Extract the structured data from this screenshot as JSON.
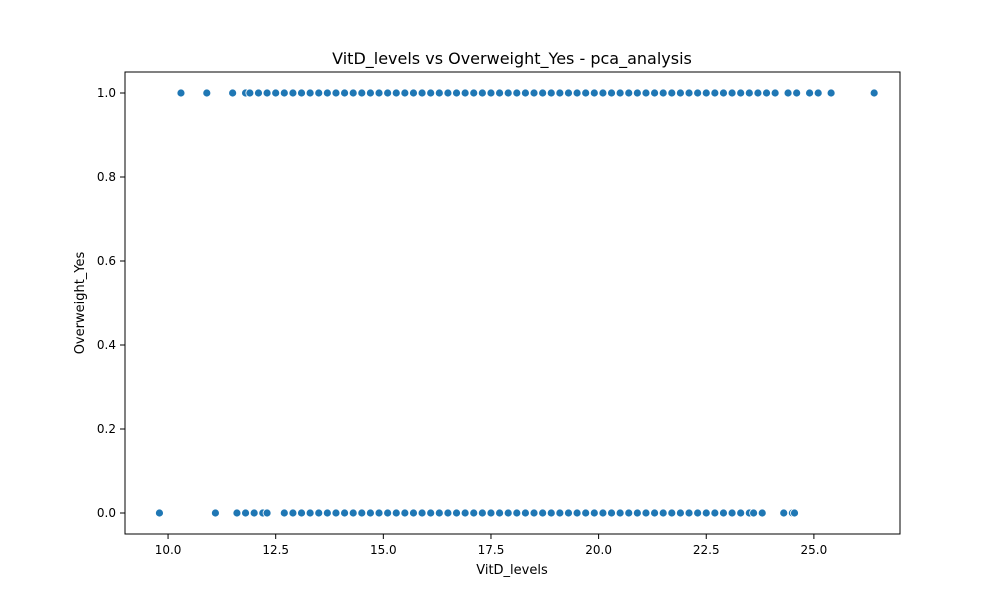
{
  "chart_data": {
    "type": "scatter",
    "title": "VitD_levels vs Overweight_Yes - pca_analysis",
    "xlabel": "VitD_levels",
    "ylabel": "Overweight_Yes",
    "xlim": [
      9.0,
      27.0
    ],
    "ylim": [
      -0.05,
      1.05
    ],
    "x_ticks": [
      10.0,
      12.5,
      15.0,
      17.5,
      20.0,
      22.5,
      25.0
    ],
    "x_tick_labels": [
      "10.0",
      "12.5",
      "15.0",
      "17.5",
      "20.0",
      "22.5",
      "25.0"
    ],
    "y_ticks": [
      0.0,
      0.2,
      0.4,
      0.6,
      0.8,
      1.0
    ],
    "y_tick_labels": [
      "0.0",
      "0.2",
      "0.4",
      "0.6",
      "0.8",
      "1.0"
    ],
    "grid": false,
    "marker_color": "#1f77b4",
    "series": [
      {
        "points": [
          {
            "x": 10.3,
            "y": 1
          },
          {
            "x": 10.9,
            "y": 1
          },
          {
            "x": 11.5,
            "y": 1
          },
          {
            "x": 11.8,
            "y": 1
          },
          {
            "x": 11.9,
            "y": 1
          },
          {
            "x": 12.1,
            "y": 1
          },
          {
            "x": 12.3,
            "y": 1
          },
          {
            "x": 12.5,
            "y": 1
          },
          {
            "x": 12.7,
            "y": 1
          },
          {
            "x": 12.9,
            "y": 1
          },
          {
            "x": 13.1,
            "y": 1
          },
          {
            "x": 13.3,
            "y": 1
          },
          {
            "x": 13.5,
            "y": 1
          },
          {
            "x": 13.7,
            "y": 1
          },
          {
            "x": 13.9,
            "y": 1
          },
          {
            "x": 14.1,
            "y": 1
          },
          {
            "x": 14.3,
            "y": 1
          },
          {
            "x": 14.5,
            "y": 1
          },
          {
            "x": 14.7,
            "y": 1
          },
          {
            "x": 14.9,
            "y": 1
          },
          {
            "x": 15.1,
            "y": 1
          },
          {
            "x": 15.3,
            "y": 1
          },
          {
            "x": 15.5,
            "y": 1
          },
          {
            "x": 15.7,
            "y": 1
          },
          {
            "x": 15.9,
            "y": 1
          },
          {
            "x": 16.1,
            "y": 1
          },
          {
            "x": 16.3,
            "y": 1
          },
          {
            "x": 16.5,
            "y": 1
          },
          {
            "x": 16.7,
            "y": 1
          },
          {
            "x": 16.9,
            "y": 1
          },
          {
            "x": 17.1,
            "y": 1
          },
          {
            "x": 17.3,
            "y": 1
          },
          {
            "x": 17.5,
            "y": 1
          },
          {
            "x": 17.7,
            "y": 1
          },
          {
            "x": 17.9,
            "y": 1
          },
          {
            "x": 18.1,
            "y": 1
          },
          {
            "x": 18.3,
            "y": 1
          },
          {
            "x": 18.5,
            "y": 1
          },
          {
            "x": 18.7,
            "y": 1
          },
          {
            "x": 18.9,
            "y": 1
          },
          {
            "x": 19.1,
            "y": 1
          },
          {
            "x": 19.3,
            "y": 1
          },
          {
            "x": 19.5,
            "y": 1
          },
          {
            "x": 19.7,
            "y": 1
          },
          {
            "x": 19.9,
            "y": 1
          },
          {
            "x": 20.1,
            "y": 1
          },
          {
            "x": 20.3,
            "y": 1
          },
          {
            "x": 20.5,
            "y": 1
          },
          {
            "x": 20.7,
            "y": 1
          },
          {
            "x": 20.9,
            "y": 1
          },
          {
            "x": 21.1,
            "y": 1
          },
          {
            "x": 21.3,
            "y": 1
          },
          {
            "x": 21.5,
            "y": 1
          },
          {
            "x": 21.7,
            "y": 1
          },
          {
            "x": 21.9,
            "y": 1
          },
          {
            "x": 22.1,
            "y": 1
          },
          {
            "x": 22.3,
            "y": 1
          },
          {
            "x": 22.5,
            "y": 1
          },
          {
            "x": 22.7,
            "y": 1
          },
          {
            "x": 22.9,
            "y": 1
          },
          {
            "x": 23.1,
            "y": 1
          },
          {
            "x": 23.3,
            "y": 1
          },
          {
            "x": 23.5,
            "y": 1
          },
          {
            "x": 23.7,
            "y": 1
          },
          {
            "x": 23.9,
            "y": 1
          },
          {
            "x": 24.1,
            "y": 1
          },
          {
            "x": 24.4,
            "y": 1
          },
          {
            "x": 24.6,
            "y": 1
          },
          {
            "x": 24.9,
            "y": 1
          },
          {
            "x": 25.1,
            "y": 1
          },
          {
            "x": 25.4,
            "y": 1
          },
          {
            "x": 26.4,
            "y": 1
          },
          {
            "x": 9.8,
            "y": 0
          },
          {
            "x": 11.1,
            "y": 0
          },
          {
            "x": 11.6,
            "y": 0
          },
          {
            "x": 11.8,
            "y": 0
          },
          {
            "x": 12.0,
            "y": 0
          },
          {
            "x": 12.2,
            "y": 0
          },
          {
            "x": 12.3,
            "y": 0
          },
          {
            "x": 12.7,
            "y": 0
          },
          {
            "x": 12.9,
            "y": 0
          },
          {
            "x": 13.1,
            "y": 0
          },
          {
            "x": 13.3,
            "y": 0
          },
          {
            "x": 13.5,
            "y": 0
          },
          {
            "x": 13.7,
            "y": 0
          },
          {
            "x": 13.9,
            "y": 0
          },
          {
            "x": 14.1,
            "y": 0
          },
          {
            "x": 14.3,
            "y": 0
          },
          {
            "x": 14.5,
            "y": 0
          },
          {
            "x": 14.7,
            "y": 0
          },
          {
            "x": 14.9,
            "y": 0
          },
          {
            "x": 15.1,
            "y": 0
          },
          {
            "x": 15.3,
            "y": 0
          },
          {
            "x": 15.5,
            "y": 0
          },
          {
            "x": 15.7,
            "y": 0
          },
          {
            "x": 15.9,
            "y": 0
          },
          {
            "x": 16.1,
            "y": 0
          },
          {
            "x": 16.3,
            "y": 0
          },
          {
            "x": 16.5,
            "y": 0
          },
          {
            "x": 16.7,
            "y": 0
          },
          {
            "x": 16.9,
            "y": 0
          },
          {
            "x": 17.1,
            "y": 0
          },
          {
            "x": 17.3,
            "y": 0
          },
          {
            "x": 17.5,
            "y": 0
          },
          {
            "x": 17.7,
            "y": 0
          },
          {
            "x": 17.9,
            "y": 0
          },
          {
            "x": 18.1,
            "y": 0
          },
          {
            "x": 18.3,
            "y": 0
          },
          {
            "x": 18.5,
            "y": 0
          },
          {
            "x": 18.7,
            "y": 0
          },
          {
            "x": 18.9,
            "y": 0
          },
          {
            "x": 19.1,
            "y": 0
          },
          {
            "x": 19.3,
            "y": 0
          },
          {
            "x": 19.5,
            "y": 0
          },
          {
            "x": 19.7,
            "y": 0
          },
          {
            "x": 19.9,
            "y": 0
          },
          {
            "x": 20.1,
            "y": 0
          },
          {
            "x": 20.3,
            "y": 0
          },
          {
            "x": 20.5,
            "y": 0
          },
          {
            "x": 20.7,
            "y": 0
          },
          {
            "x": 20.9,
            "y": 0
          },
          {
            "x": 21.1,
            "y": 0
          },
          {
            "x": 21.3,
            "y": 0
          },
          {
            "x": 21.5,
            "y": 0
          },
          {
            "x": 21.7,
            "y": 0
          },
          {
            "x": 21.9,
            "y": 0
          },
          {
            "x": 22.1,
            "y": 0
          },
          {
            "x": 22.3,
            "y": 0
          },
          {
            "x": 22.5,
            "y": 0
          },
          {
            "x": 22.7,
            "y": 0
          },
          {
            "x": 22.9,
            "y": 0
          },
          {
            "x": 23.1,
            "y": 0
          },
          {
            "x": 23.3,
            "y": 0
          },
          {
            "x": 23.5,
            "y": 0
          },
          {
            "x": 23.6,
            "y": 0
          },
          {
            "x": 23.8,
            "y": 0
          },
          {
            "x": 24.3,
            "y": 0
          },
          {
            "x": 24.5,
            "y": 0
          },
          {
            "x": 24.55,
            "y": 0
          }
        ]
      }
    ]
  }
}
